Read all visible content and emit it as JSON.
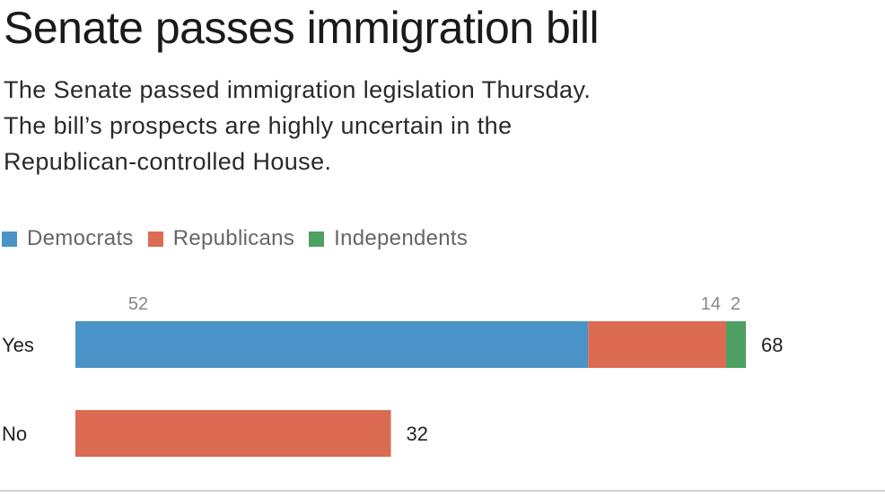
{
  "title": "Senate passes immigration bill",
  "subtitle_lines": [
    "The Senate passed immigration legislation Thursday.",
    "The bill’s prospects are highly uncertain in the",
    "Republican-controlled House."
  ],
  "colors": {
    "democrats": "#4a93c8",
    "republicans": "#db6b52",
    "independents": "#4e9f62"
  },
  "chart_data": {
    "type": "bar",
    "orientation": "horizontal",
    "stacked": true,
    "categories": [
      "Yes",
      "No"
    ],
    "series": [
      {
        "name": "Democrats",
        "values": [
          52,
          0
        ]
      },
      {
        "name": "Republicans",
        "values": [
          14,
          32
        ]
      },
      {
        "name": "Independents",
        "values": [
          2,
          0
        ]
      }
    ],
    "segment_labels": {
      "Yes": [
        "52",
        "14",
        "2"
      ]
    },
    "totals": [
      "68",
      "32"
    ],
    "xlim": [
      0,
      68
    ],
    "legend_position": "top-left",
    "grid": false
  }
}
